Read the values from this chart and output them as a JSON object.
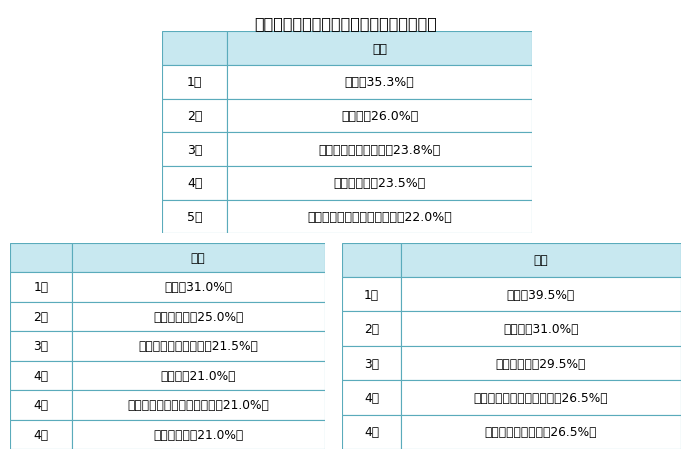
{
  "title": "ストレス発散法で効果があったものは何か",
  "title_fontsize": 11.5,
  "header_bg": "#c8e8f0",
  "cell_bg": "#ffffff",
  "border_color": "#5aabbb",
  "text_color": "#000000",
  "overall": {
    "header": "全体",
    "rows": [
      [
        "1位",
        "寝る（35.3%）"
      ],
      [
        "2位",
        "生べる（26.0%）"
      ],
      [
        "3位",
        "一人の時間を過ごす（23.8%）"
      ],
      [
        "4位",
        "音楽を聴く（23.5%）"
      ],
      [
        "5位",
        "考えすぎない／気にしない（22.0%）"
      ]
    ]
  },
  "male": {
    "header": "男性",
    "rows": [
      [
        "1位",
        "寝る（31.0%）"
      ],
      [
        "2位",
        "お酒を飲む（25.0%）"
      ],
      [
        "3位",
        "一人の時間を過ごす（21.5%）"
      ],
      [
        "4位",
        "生べる（21.0%）"
      ],
      [
        "4位",
        "考えすぎない／気にしない（21.0%）"
      ],
      [
        "4位",
        "運動／散歩（21.0%）"
      ]
    ]
  },
  "female": {
    "header": "女性",
    "rows": [
      [
        "1位",
        "寝る（39.5%）"
      ],
      [
        "2位",
        "生べる（31.0%）"
      ],
      [
        "3位",
        "音楽を聴く（29.5%）"
      ],
      [
        "4位",
        "ドラマや動画などを観る（26.5%）"
      ],
      [
        "4位",
        "友達や家族と話す（26.5%）"
      ]
    ]
  }
}
